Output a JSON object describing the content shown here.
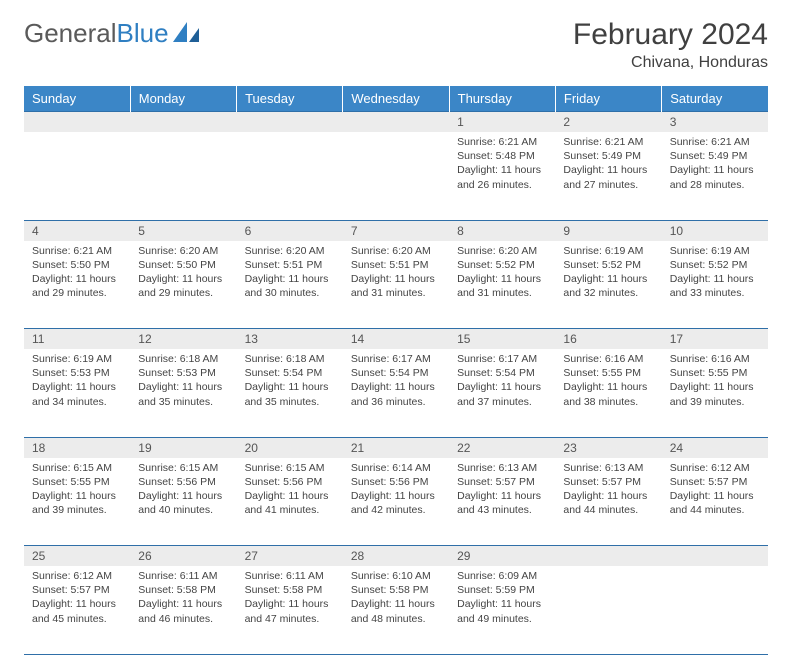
{
  "brand": {
    "part1": "General",
    "part2": "Blue"
  },
  "title": "February 2024",
  "location": "Chivana, Honduras",
  "colors": {
    "header_bg": "#3b86c7",
    "header_text": "#ffffff",
    "border": "#2f6fa8",
    "daynum_bg": "#ececec",
    "body_text": "#444444"
  },
  "columns": [
    "Sunday",
    "Monday",
    "Tuesday",
    "Wednesday",
    "Thursday",
    "Friday",
    "Saturday"
  ],
  "weeks": [
    [
      null,
      null,
      null,
      null,
      {
        "n": "1",
        "sunrise": "6:21 AM",
        "sunset": "5:48 PM",
        "daylight": "11 hours and 26 minutes."
      },
      {
        "n": "2",
        "sunrise": "6:21 AM",
        "sunset": "5:49 PM",
        "daylight": "11 hours and 27 minutes."
      },
      {
        "n": "3",
        "sunrise": "6:21 AM",
        "sunset": "5:49 PM",
        "daylight": "11 hours and 28 minutes."
      }
    ],
    [
      {
        "n": "4",
        "sunrise": "6:21 AM",
        "sunset": "5:50 PM",
        "daylight": "11 hours and 29 minutes."
      },
      {
        "n": "5",
        "sunrise": "6:20 AM",
        "sunset": "5:50 PM",
        "daylight": "11 hours and 29 minutes."
      },
      {
        "n": "6",
        "sunrise": "6:20 AM",
        "sunset": "5:51 PM",
        "daylight": "11 hours and 30 minutes."
      },
      {
        "n": "7",
        "sunrise": "6:20 AM",
        "sunset": "5:51 PM",
        "daylight": "11 hours and 31 minutes."
      },
      {
        "n": "8",
        "sunrise": "6:20 AM",
        "sunset": "5:52 PM",
        "daylight": "11 hours and 31 minutes."
      },
      {
        "n": "9",
        "sunrise": "6:19 AM",
        "sunset": "5:52 PM",
        "daylight": "11 hours and 32 minutes."
      },
      {
        "n": "10",
        "sunrise": "6:19 AM",
        "sunset": "5:52 PM",
        "daylight": "11 hours and 33 minutes."
      }
    ],
    [
      {
        "n": "11",
        "sunrise": "6:19 AM",
        "sunset": "5:53 PM",
        "daylight": "11 hours and 34 minutes."
      },
      {
        "n": "12",
        "sunrise": "6:18 AM",
        "sunset": "5:53 PM",
        "daylight": "11 hours and 35 minutes."
      },
      {
        "n": "13",
        "sunrise": "6:18 AM",
        "sunset": "5:54 PM",
        "daylight": "11 hours and 35 minutes."
      },
      {
        "n": "14",
        "sunrise": "6:17 AM",
        "sunset": "5:54 PM",
        "daylight": "11 hours and 36 minutes."
      },
      {
        "n": "15",
        "sunrise": "6:17 AM",
        "sunset": "5:54 PM",
        "daylight": "11 hours and 37 minutes."
      },
      {
        "n": "16",
        "sunrise": "6:16 AM",
        "sunset": "5:55 PM",
        "daylight": "11 hours and 38 minutes."
      },
      {
        "n": "17",
        "sunrise": "6:16 AM",
        "sunset": "5:55 PM",
        "daylight": "11 hours and 39 minutes."
      }
    ],
    [
      {
        "n": "18",
        "sunrise": "6:15 AM",
        "sunset": "5:55 PM",
        "daylight": "11 hours and 39 minutes."
      },
      {
        "n": "19",
        "sunrise": "6:15 AM",
        "sunset": "5:56 PM",
        "daylight": "11 hours and 40 minutes."
      },
      {
        "n": "20",
        "sunrise": "6:15 AM",
        "sunset": "5:56 PM",
        "daylight": "11 hours and 41 minutes."
      },
      {
        "n": "21",
        "sunrise": "6:14 AM",
        "sunset": "5:56 PM",
        "daylight": "11 hours and 42 minutes."
      },
      {
        "n": "22",
        "sunrise": "6:13 AM",
        "sunset": "5:57 PM",
        "daylight": "11 hours and 43 minutes."
      },
      {
        "n": "23",
        "sunrise": "6:13 AM",
        "sunset": "5:57 PM",
        "daylight": "11 hours and 44 minutes."
      },
      {
        "n": "24",
        "sunrise": "6:12 AM",
        "sunset": "5:57 PM",
        "daylight": "11 hours and 44 minutes."
      }
    ],
    [
      {
        "n": "25",
        "sunrise": "6:12 AM",
        "sunset": "5:57 PM",
        "daylight": "11 hours and 45 minutes."
      },
      {
        "n": "26",
        "sunrise": "6:11 AM",
        "sunset": "5:58 PM",
        "daylight": "11 hours and 46 minutes."
      },
      {
        "n": "27",
        "sunrise": "6:11 AM",
        "sunset": "5:58 PM",
        "daylight": "11 hours and 47 minutes."
      },
      {
        "n": "28",
        "sunrise": "6:10 AM",
        "sunset": "5:58 PM",
        "daylight": "11 hours and 48 minutes."
      },
      {
        "n": "29",
        "sunrise": "6:09 AM",
        "sunset": "5:59 PM",
        "daylight": "11 hours and 49 minutes."
      },
      null,
      null
    ]
  ],
  "labels": {
    "sunrise": "Sunrise:",
    "sunset": "Sunset:",
    "daylight": "Daylight:"
  }
}
